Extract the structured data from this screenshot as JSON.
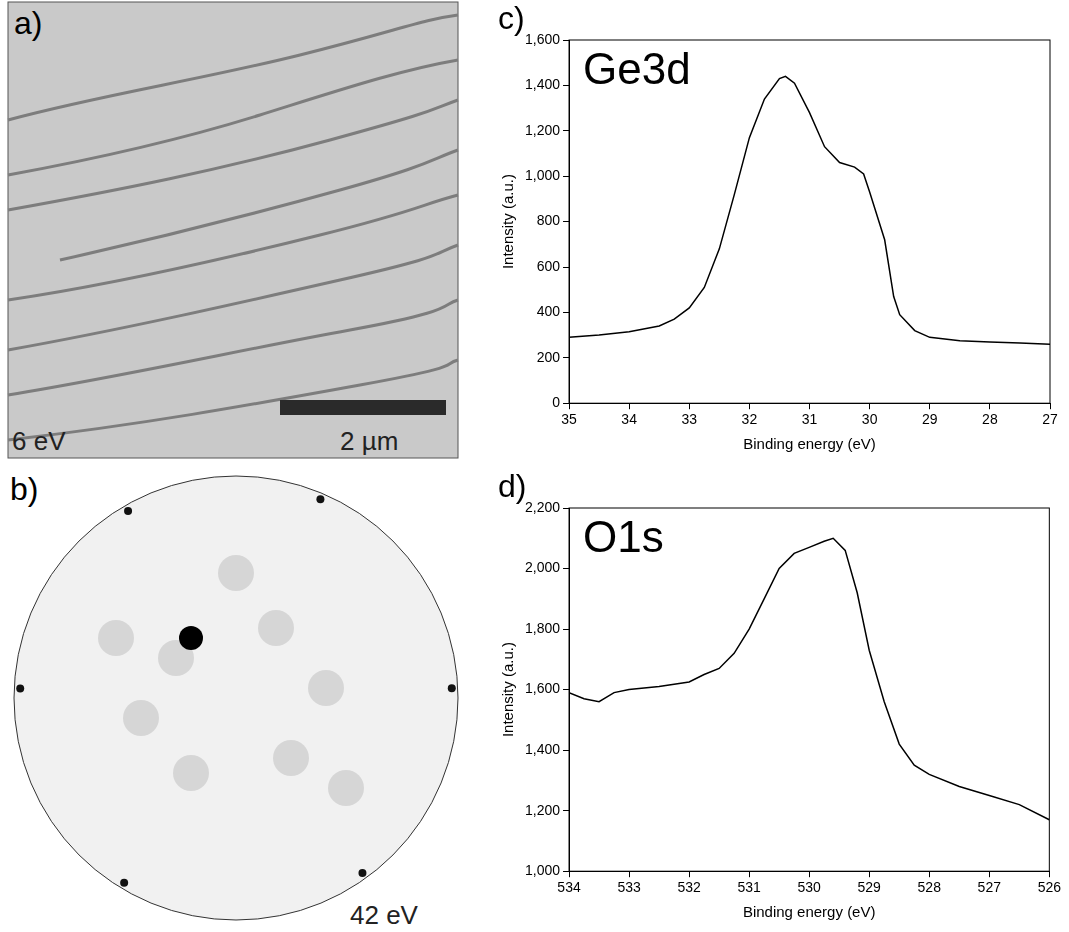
{
  "panels": [
    {
      "label": "a)",
      "energy": "6 eV",
      "scale_bar": "2 µm"
    },
    {
      "label": "b)",
      "energy": "42 eV"
    }
  ],
  "chart_data": [
    {
      "label": "c)",
      "type": "line",
      "title": "Ge3d",
      "x_label": "Binding energy (eV)",
      "y_label": "Intensity (a.u.)",
      "x": [
        35,
        34.5,
        34,
        33.5,
        33.25,
        33,
        32.75,
        32.5,
        32.25,
        32,
        31.75,
        31.5,
        31.4,
        31.25,
        31,
        30.75,
        30.5,
        30.25,
        30.1,
        30,
        29.75,
        29.6,
        29.5,
        29.25,
        29,
        28.5,
        28,
        27.5,
        27
      ],
      "values": [
        290,
        300,
        315,
        340,
        370,
        420,
        510,
        680,
        920,
        1170,
        1340,
        1430,
        1440,
        1410,
        1280,
        1130,
        1060,
        1040,
        1010,
        930,
        720,
        470,
        390,
        320,
        290,
        275,
        270,
        265,
        260
      ],
      "color": "#000000",
      "xlim": [
        35,
        27
      ],
      "ylim": [
        0,
        1600
      ],
      "xticks": [
        35,
        34,
        33,
        32,
        31,
        30,
        29,
        28,
        27
      ],
      "yticks": [
        0,
        200,
        400,
        600,
        800,
        1000,
        1200,
        1400,
        1600
      ],
      "grid": false
    },
    {
      "label": "d)",
      "type": "line",
      "title": "O1s",
      "x_label": "Binding energy (eV)",
      "y_label": "Intensity (a.u.)",
      "x": [
        534,
        533.75,
        533.5,
        533.25,
        533,
        532.5,
        532,
        531.75,
        531.5,
        531.25,
        531,
        530.75,
        530.5,
        530.25,
        530,
        529.75,
        529.6,
        529.4,
        529.2,
        529,
        528.75,
        528.5,
        528.25,
        528,
        527.5,
        527,
        526.5,
        526
      ],
      "values": [
        1590,
        1570,
        1560,
        1590,
        1600,
        1610,
        1625,
        1650,
        1670,
        1720,
        1800,
        1900,
        2000,
        2050,
        2070,
        2090,
        2100,
        2060,
        1920,
        1730,
        1560,
        1420,
        1350,
        1320,
        1280,
        1250,
        1220,
        1170
      ],
      "color": "#000000",
      "xlim": [
        534,
        526
      ],
      "ylim": [
        1000,
        2200
      ],
      "xticks": [
        534,
        533,
        532,
        531,
        530,
        529,
        528,
        527,
        526
      ],
      "yticks": [
        1000,
        1200,
        1400,
        1600,
        1800,
        2000,
        2200
      ],
      "grid": false
    }
  ]
}
